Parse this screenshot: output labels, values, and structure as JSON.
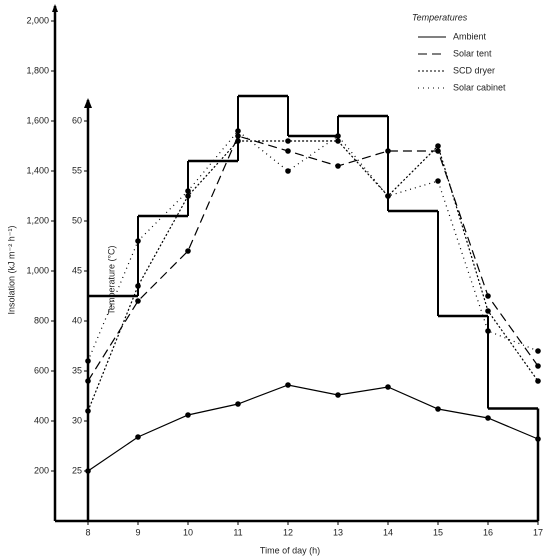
{
  "chart_data": {
    "type": "line",
    "x_label": "Time of day (h)",
    "y_label": "Insolation (kJ m⁻² h⁻¹)",
    "y2_label": "Temperature (°C)",
    "legend_title": "Temperatures",
    "x": [
      8,
      9,
      10,
      11,
      12,
      13,
      14,
      15,
      16,
      17
    ],
    "xlim": [
      8,
      17
    ],
    "xticks": [
      8,
      9,
      10,
      11,
      12,
      13,
      14,
      15,
      16,
      17
    ],
    "ylim": [
      0,
      2000
    ],
    "yticks": [
      200,
      400,
      600,
      800,
      {
        "value": 1000,
        "label": "1,000"
      },
      {
        "value": 1200,
        "label": "1,200"
      },
      {
        "value": 1400,
        "label": "1,400"
      },
      {
        "value": 1600,
        "label": "1,600"
      },
      {
        "value": 1800,
        "label": "1,800"
      },
      {
        "value": 2000,
        "label": "2,000"
      }
    ],
    "y2lim": [
      20,
      60
    ],
    "y2ticks": [
      25,
      30,
      35,
      40,
      45,
      50,
      55,
      60
    ],
    "insolation": {
      "color": "#000",
      "step": true,
      "values": [
        900,
        1220,
        1440,
        1700,
        1540,
        1620,
        1240,
        820,
        450,
        null
      ]
    },
    "series": [
      {
        "name": "Ambient",
        "color": "#000",
        "dash": "",
        "axis": "y2",
        "values": [
          25,
          28.4,
          30.6,
          31.7,
          33.6,
          32.6,
          33.4,
          31.2,
          30.3,
          28.2
        ]
      },
      {
        "name": "Solar tent",
        "color": "#000",
        "dash": "9 5",
        "axis": "y2",
        "values": [
          34,
          42,
          47,
          58.5,
          57,
          55.5,
          57,
          57,
          42.5,
          35.5
        ]
      },
      {
        "name": "SCD dryer",
        "color": "#000",
        "dash": "2 2",
        "axis": "y2",
        "values": [
          31,
          43.5,
          52.5,
          58,
          58,
          58,
          52.5,
          57.5,
          41,
          34
        ]
      },
      {
        "name": "Solar cabinet",
        "color": "#000",
        "dash": "1 4",
        "axis": "y2",
        "values": [
          36,
          48,
          53,
          59,
          55,
          58.5,
          52.5,
          54,
          39,
          37
        ]
      }
    ],
    "legend": "upper right"
  }
}
